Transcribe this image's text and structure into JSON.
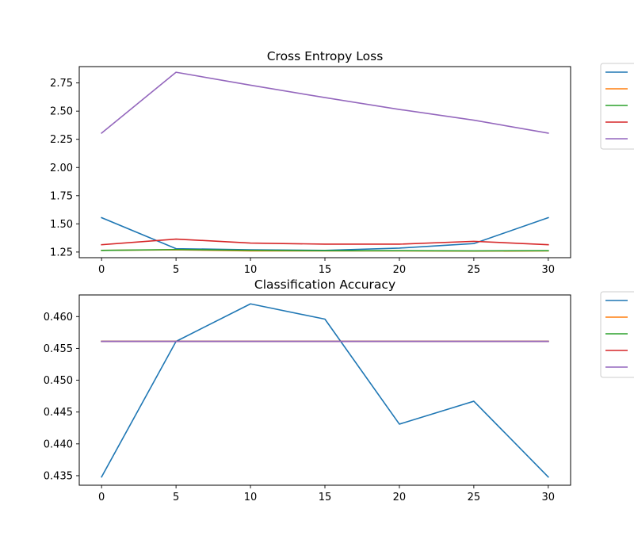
{
  "chart_data": [
    {
      "type": "line",
      "title": "Cross Entropy Loss",
      "xlabel": "",
      "ylabel": "",
      "x": [
        0,
        5,
        10,
        15,
        20,
        25,
        30
      ],
      "xlim": [
        -1.5,
        31.5
      ],
      "ylim": [
        1.2,
        2.895
      ],
      "xticks": [
        0,
        5,
        10,
        15,
        20,
        25,
        30
      ],
      "xtick_labels": [
        "0",
        "5",
        "10",
        "15",
        "20",
        "25",
        "30"
      ],
      "yticks": [
        1.25,
        1.5,
        1.75,
        2.0,
        2.25,
        2.5,
        2.75
      ],
      "ytick_labels": [
        "1.25",
        "1.50",
        "1.75",
        "2.00",
        "2.25",
        "2.50",
        "2.75"
      ],
      "grid": false,
      "legend_position": "outside-right",
      "series": [
        {
          "color": "#1f77b4",
          "values": [
            1.555,
            1.28,
            1.27,
            1.265,
            1.285,
            1.325,
            1.555
          ]
        },
        {
          "color": "#ff7f0e",
          "values": [
            1.265,
            1.27,
            1.26,
            1.26,
            1.26,
            1.258,
            1.26
          ]
        },
        {
          "color": "#2ca02c",
          "values": [
            1.265,
            1.272,
            1.265,
            1.262,
            1.262,
            1.26,
            1.262
          ]
        },
        {
          "color": "#d62728",
          "values": [
            1.315,
            1.365,
            1.33,
            1.32,
            1.32,
            1.345,
            1.315
          ]
        },
        {
          "color": "#9467bd",
          "values": [
            2.305,
            2.845,
            2.73,
            2.62,
            2.515,
            2.42,
            2.305
          ]
        }
      ]
    },
    {
      "type": "line",
      "title": "Classification Accuracy",
      "xlabel": "",
      "ylabel": "",
      "x": [
        0,
        5,
        10,
        15,
        20,
        25,
        30
      ],
      "xlim": [
        -1.5,
        31.5
      ],
      "ylim": [
        0.4335,
        0.4634
      ],
      "xticks": [
        0,
        5,
        10,
        15,
        20,
        25,
        30
      ],
      "xtick_labels": [
        "0",
        "5",
        "10",
        "15",
        "20",
        "25",
        "30"
      ],
      "yticks": [
        0.435,
        0.44,
        0.445,
        0.45,
        0.455,
        0.46
      ],
      "ytick_labels": [
        "0.435",
        "0.440",
        "0.445",
        "0.450",
        "0.455",
        "0.460"
      ],
      "grid": false,
      "legend_position": "outside-right",
      "series": [
        {
          "color": "#1f77b4",
          "values": [
            0.4348,
            0.4561,
            0.462,
            0.4596,
            0.4431,
            0.4467,
            0.4348
          ]
        },
        {
          "color": "#ff7f0e",
          "values": [
            0.4561,
            0.4561,
            0.4561,
            0.4561,
            0.4561,
            0.4561,
            0.4561
          ]
        },
        {
          "color": "#2ca02c",
          "values": [
            0.4561,
            0.4561,
            0.4561,
            0.4561,
            0.4561,
            0.4561,
            0.4561
          ]
        },
        {
          "color": "#d62728",
          "values": [
            0.4561,
            0.4561,
            0.4561,
            0.4561,
            0.4561,
            0.4561,
            0.4561
          ]
        },
        {
          "color": "#9467bd",
          "values": [
            0.4561,
            0.4561,
            0.4561,
            0.4561,
            0.4561,
            0.4561,
            0.4561
          ]
        }
      ]
    }
  ]
}
